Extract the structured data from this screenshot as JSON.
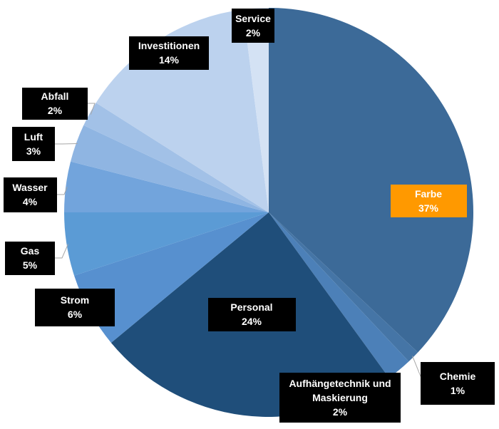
{
  "chart_data": {
    "type": "pie",
    "categories": [
      "Farbe",
      "Chemie",
      "Aufhängetechnik und Maskierung",
      "Personal",
      "Strom",
      "Gas",
      "Wasser",
      "Luft",
      "Abfall",
      "Investitionen",
      "Service"
    ],
    "values": [
      37,
      1,
      2,
      24,
      6,
      5,
      4,
      3,
      2,
      14,
      2
    ],
    "value_labels": [
      "37%",
      "1%",
      "2%",
      "24%",
      "6%",
      "5%",
      "4%",
      "3%",
      "2%",
      "14%",
      "2%"
    ],
    "colors": [
      "#3c6a98",
      "#4575a6",
      "#4c80b8",
      "#1f4e7a",
      "#5790cf",
      "#5b9bd5",
      "#72a4dc",
      "#8fb5e2",
      "#a2c1e7",
      "#bcd2ee",
      "#d4e2f4"
    ]
  }
}
